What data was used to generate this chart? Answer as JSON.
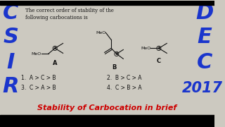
{
  "bg_color": "#ccc9c0",
  "left_letters": [
    "C",
    "S",
    "I",
    "R"
  ],
  "right_letters_top": [
    "D",
    "E",
    "C"
  ],
  "right_2017": "2017",
  "title_line1": "The correct order of stability of the",
  "title_line2": "following carbocations is",
  "label_A": "A",
  "label_B": "B",
  "label_C": "C",
  "opt1": "1.  A > C > B",
  "opt2": "3.  C > A > B",
  "opt3": "2.  B > C > A",
  "opt4": "4.  C > B > A",
  "footer": "Stability of Carbocation in brief",
  "blue_color": "#1a35cc",
  "red_color": "#cc0000",
  "black_color": "#111111"
}
